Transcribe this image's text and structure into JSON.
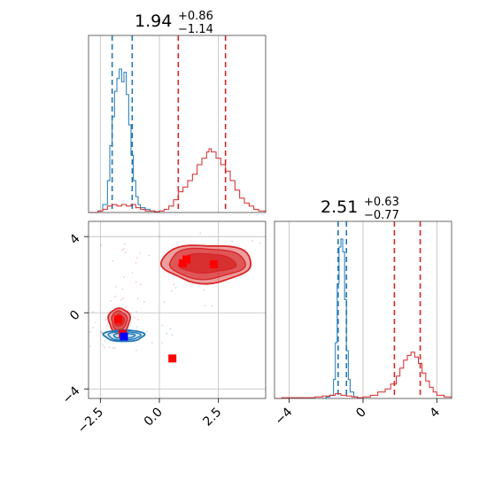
{
  "colors": {
    "red": "#d62728",
    "blue": "#1f77b4",
    "marker_blue": "#0000ff"
  },
  "chart_data": [
    {
      "type": "histogram",
      "panel": "marginal-x",
      "title": {
        "value": "1.94",
        "upper": "+0.86",
        "lower": "−1.14"
      },
      "xlim": [
        -3.0,
        4.5
      ],
      "gridlines_x": [
        -2.5,
        0.0,
        2.5
      ],
      "series": [
        {
          "name": "",
          "color": "#1f77b4",
          "quantiles": [
            -2.0,
            -1.15
          ],
          "bins": [
            [
              -3.0,
              0
            ],
            [
              -2.8,
              0
            ],
            [
              -2.6,
              0.01
            ],
            [
              -2.4,
              0.05
            ],
            [
              -2.2,
              0.2
            ],
            [
              -2.1,
              0.42
            ],
            [
              -2.0,
              0.6
            ],
            [
              -1.9,
              0.76
            ],
            [
              -1.8,
              0.84
            ],
            [
              -1.7,
              0.9
            ],
            [
              -1.6,
              0.82
            ],
            [
              -1.5,
              0.88
            ],
            [
              -1.4,
              0.74
            ],
            [
              -1.3,
              0.55
            ],
            [
              -1.2,
              0.36
            ],
            [
              -1.1,
              0.2
            ],
            [
              -1.0,
              0.1
            ],
            [
              -0.9,
              0.05
            ],
            [
              -0.8,
              0.03
            ],
            [
              -0.6,
              0.02
            ],
            [
              -0.4,
              0.01
            ],
            [
              -0.2,
              0.005
            ],
            [
              0.0,
              0
            ]
          ]
        },
        {
          "name": "",
          "color": "#d62728",
          "quantiles": [
            0.8,
            2.8
          ],
          "bins": [
            [
              -3.0,
              0
            ],
            [
              -2.6,
              0.01
            ],
            [
              -2.4,
              0.02
            ],
            [
              -2.2,
              0.04
            ],
            [
              -2.0,
              0.05
            ],
            [
              -1.8,
              0.04
            ],
            [
              -1.6,
              0.05
            ],
            [
              -1.4,
              0.04
            ],
            [
              -1.2,
              0.05
            ],
            [
              -1.0,
              0.03
            ],
            [
              -0.8,
              0.02
            ],
            [
              -0.6,
              0.01
            ],
            [
              -0.4,
              0.01
            ],
            [
              -0.2,
              0.005
            ],
            [
              0.0,
              0.01
            ],
            [
              0.2,
              0.02
            ],
            [
              0.4,
              0.04
            ],
            [
              0.6,
              0.08
            ],
            [
              0.8,
              0.13
            ],
            [
              1.0,
              0.16
            ],
            [
              1.2,
              0.2
            ],
            [
              1.4,
              0.24
            ],
            [
              1.6,
              0.3
            ],
            [
              1.8,
              0.34
            ],
            [
              2.0,
              0.38
            ],
            [
              2.1,
              0.4
            ],
            [
              2.2,
              0.38
            ],
            [
              2.4,
              0.34
            ],
            [
              2.6,
              0.3
            ],
            [
              2.8,
              0.26
            ],
            [
              3.0,
              0.2
            ],
            [
              3.2,
              0.14
            ],
            [
              3.4,
              0.09
            ],
            [
              3.6,
              0.06
            ],
            [
              3.8,
              0.04
            ],
            [
              4.0,
              0.02
            ],
            [
              4.2,
              0.01
            ],
            [
              4.5,
              0
            ]
          ]
        }
      ]
    },
    {
      "type": "histogram",
      "panel": "marginal-y",
      "title": {
        "value": "2.51",
        "upper": "+0.63",
        "lower": "−0.77"
      },
      "xlim": [
        -4.8,
        4.8
      ],
      "ticks": [
        -4,
        0,
        4
      ],
      "tick_labels": [
        "−4",
        "0",
        "4"
      ],
      "series": [
        {
          "name": "",
          "color": "#1f77b4",
          "quantiles": [
            -1.35,
            -0.9
          ],
          "bins": [
            [
              -2.2,
              0
            ],
            [
              -2.0,
              0.01
            ],
            [
              -1.8,
              0.02
            ],
            [
              -1.6,
              0.12
            ],
            [
              -1.5,
              0.35
            ],
            [
              -1.4,
              0.72
            ],
            [
              -1.3,
              0.95
            ],
            [
              -1.2,
              1.0
            ],
            [
              -1.1,
              0.92
            ],
            [
              -1.0,
              0.62
            ],
            [
              -0.9,
              0.3
            ],
            [
              -0.8,
              0.12
            ],
            [
              -0.7,
              0.04
            ],
            [
              -0.5,
              0.01
            ],
            [
              -0.3,
              0
            ]
          ]
        },
        {
          "name": "",
          "color": "#d62728",
          "quantiles": [
            1.7,
            3.1
          ],
          "bins": [
            [
              -4.8,
              0
            ],
            [
              -4.4,
              0.005
            ],
            [
              -2.6,
              0.01
            ],
            [
              -2.2,
              0.015
            ],
            [
              -1.8,
              0.02
            ],
            [
              -1.5,
              0.03
            ],
            [
              -1.2,
              0.02
            ],
            [
              -0.9,
              0.015
            ],
            [
              -0.6,
              0.01
            ],
            [
              -0.3,
              0.005
            ],
            [
              0.0,
              0.01
            ],
            [
              0.4,
              0.02
            ],
            [
              0.8,
              0.04
            ],
            [
              1.2,
              0.06
            ],
            [
              1.5,
              0.09
            ],
            [
              1.8,
              0.14
            ],
            [
              2.0,
              0.19
            ],
            [
              2.2,
              0.24
            ],
            [
              2.4,
              0.27
            ],
            [
              2.6,
              0.29
            ],
            [
              2.8,
              0.26
            ],
            [
              3.0,
              0.22
            ],
            [
              3.2,
              0.16
            ],
            [
              3.4,
              0.11
            ],
            [
              3.6,
              0.07
            ],
            [
              3.8,
              0.04
            ],
            [
              4.0,
              0.02
            ],
            [
              4.4,
              0.01
            ],
            [
              4.8,
              0
            ]
          ]
        }
      ]
    },
    {
      "type": "contour",
      "panel": "joint",
      "xlim": [
        -3.0,
        4.5
      ],
      "ylim": [
        -4.5,
        4.8
      ],
      "xticks": [
        -2.5,
        0.0,
        2.5
      ],
      "xtick_labels": [
        "−2.5",
        "0.0",
        "2.5"
      ],
      "yticks": [
        -4,
        0,
        4
      ],
      "ytick_labels": [
        "−4",
        "0",
        "4"
      ],
      "contours": [
        {
          "color": "#d62728",
          "cx": 2.0,
          "cy": 2.6,
          "rx": [
            3.8,
            3.2,
            2.4
          ],
          "ry": [
            2.0,
            1.6,
            1.0
          ]
        },
        {
          "color": "#d62728",
          "cx": -1.7,
          "cy": -0.4,
          "rx": [
            0.9,
            0.65,
            0.4
          ],
          "ry": [
            1.3,
            1.0,
            0.6
          ]
        },
        {
          "color": "#1f77b4",
          "cx": -1.5,
          "cy": -1.2,
          "rx": [
            1.7,
            1.35,
            0.9
          ],
          "ry": [
            0.6,
            0.45,
            0.28
          ]
        }
      ],
      "markers": [
        {
          "color": "#ff0000",
          "x": 1.0,
          "y": 2.6
        },
        {
          "color": "#ff0000",
          "x": 1.15,
          "y": 2.8
        },
        {
          "color": "#ff0000",
          "x": 2.3,
          "y": 2.55
        },
        {
          "color": "#ff0000",
          "x": -1.75,
          "y": -0.35
        },
        {
          "color": "#ff0000",
          "x": 0.55,
          "y": -2.4
        },
        {
          "color": "#ff0000",
          "x": -1.55,
          "y": -1.1
        },
        {
          "color": "#0000ff",
          "x": -1.5,
          "y": -1.25
        }
      ]
    }
  ]
}
